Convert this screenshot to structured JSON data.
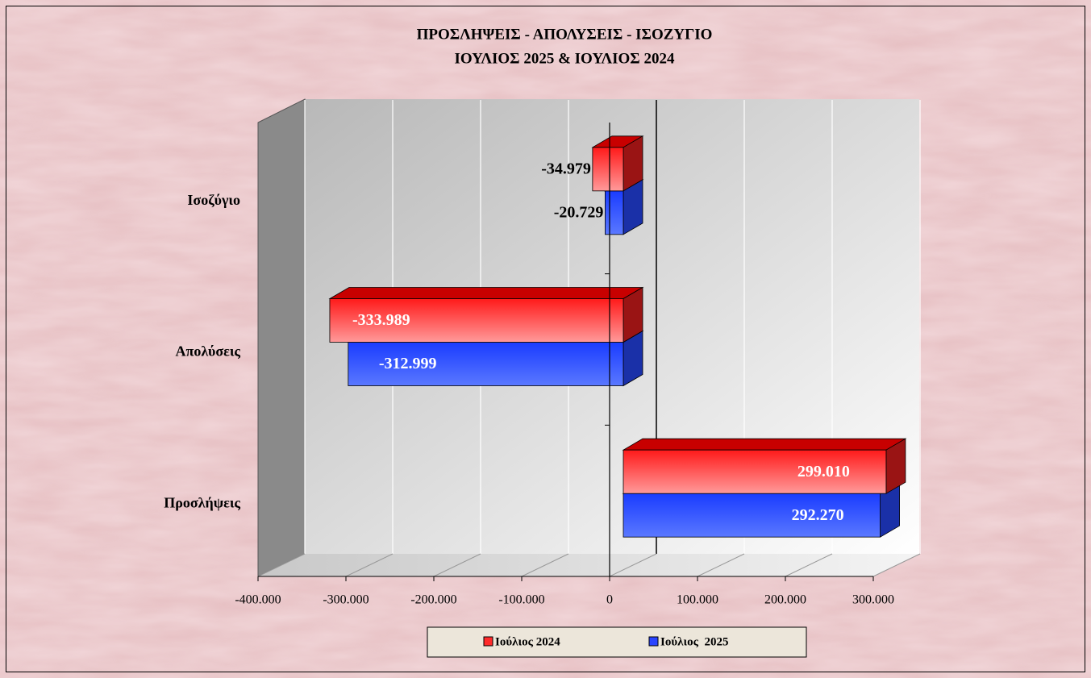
{
  "chart_data": {
    "type": "bar",
    "orientation": "horizontal",
    "title": "ΠΡΟΣΛΗΨΕΙΣ - ΑΠΟΛΥΣΕΙΣ - ΙΣΟΖΥΓΙΟ",
    "subtitle": "ΙΟΥΛΙΟΣ 2025 & ΙΟΥΛΙΟΣ 2024",
    "categories": [
      "Ισοζύγιο",
      "Απολύσεις",
      "Προσλήψεις"
    ],
    "series": [
      {
        "name": "Ιούλιος 2024",
        "color": "#ff2a2a",
        "values": [
          -34979,
          -333989,
          299010
        ],
        "value_labels": [
          "-34.979",
          "-333.989",
          "299.010"
        ]
      },
      {
        "name": "Ιούλιος  2025",
        "color": "#2a44ff",
        "values": [
          -20729,
          -312999,
          292270
        ],
        "value_labels": [
          "-20.729",
          "-312.999",
          "292.270"
        ]
      }
    ],
    "xlim": [
      -400000,
      300000
    ],
    "xticks": [
      {
        "value": -400000,
        "label": "-400.000"
      },
      {
        "value": -300000,
        "label": "-300.000"
      },
      {
        "value": -200000,
        "label": "-200.000"
      },
      {
        "value": -100000,
        "label": "-100.000"
      },
      0,
      {
        "value": 100000,
        "label": "100.000"
      },
      {
        "value": 200000,
        "label": "200.000"
      },
      {
        "value": 300000,
        "label": "300.000"
      }
    ],
    "grid": true,
    "legend": "bottom"
  }
}
